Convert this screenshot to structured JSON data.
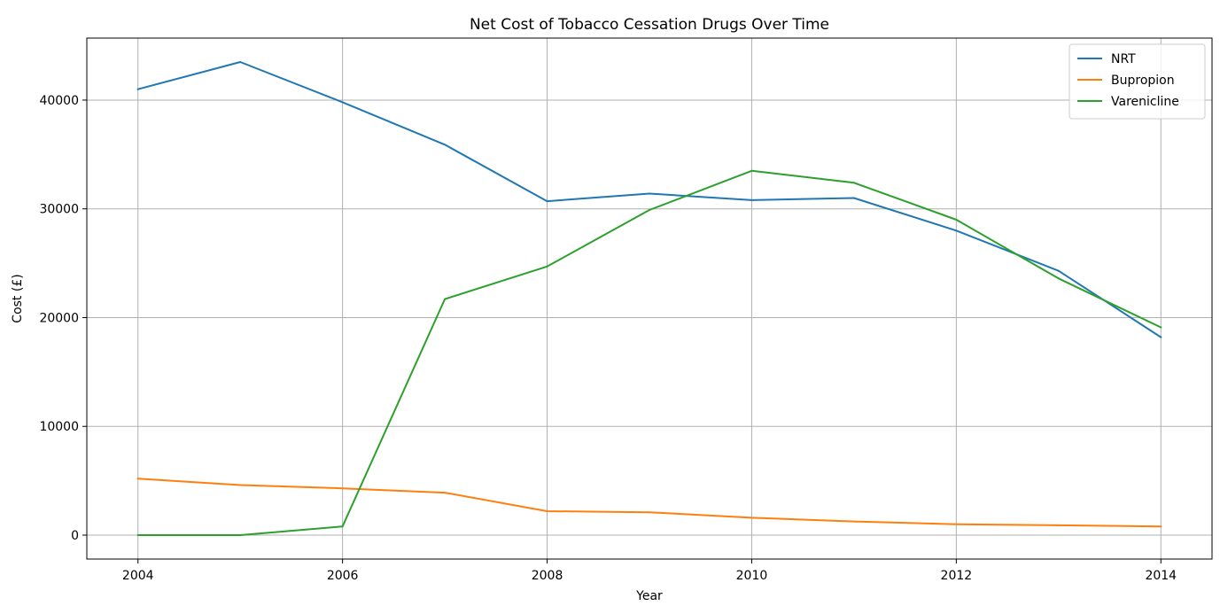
{
  "chart_data": {
    "type": "line",
    "title": "Net Cost of Tobacco Cessation Drugs Over Time",
    "xlabel": "Year",
    "ylabel": "Cost (£)",
    "x": [
      2004,
      2005,
      2006,
      2007,
      2008,
      2009,
      2010,
      2011,
      2012,
      2013,
      2014
    ],
    "xlim": [
      2003.5,
      2014.5
    ],
    "ylim": [
      -2200,
      45700
    ],
    "xticks": [
      2004,
      2006,
      2008,
      2010,
      2012,
      2014
    ],
    "yticks": [
      0,
      10000,
      20000,
      30000,
      40000
    ],
    "grid": true,
    "legend": "top-right",
    "series": [
      {
        "name": "NRT",
        "color": "#1f77b4",
        "values": [
          41000,
          43500,
          39800,
          35900,
          30700,
          31400,
          30800,
          31000,
          28000,
          24300,
          18200
        ]
      },
      {
        "name": "Bupropion",
        "color": "#ff7f0e",
        "values": [
          5200,
          4600,
          4300,
          3900,
          2200,
          2100,
          1600,
          1250,
          1000,
          900,
          800
        ]
      },
      {
        "name": "Varenicline",
        "color": "#2ca02c",
        "values": [
          0,
          0,
          800,
          21700,
          24700,
          29900,
          33500,
          32400,
          29000,
          23600,
          19100
        ]
      }
    ]
  }
}
